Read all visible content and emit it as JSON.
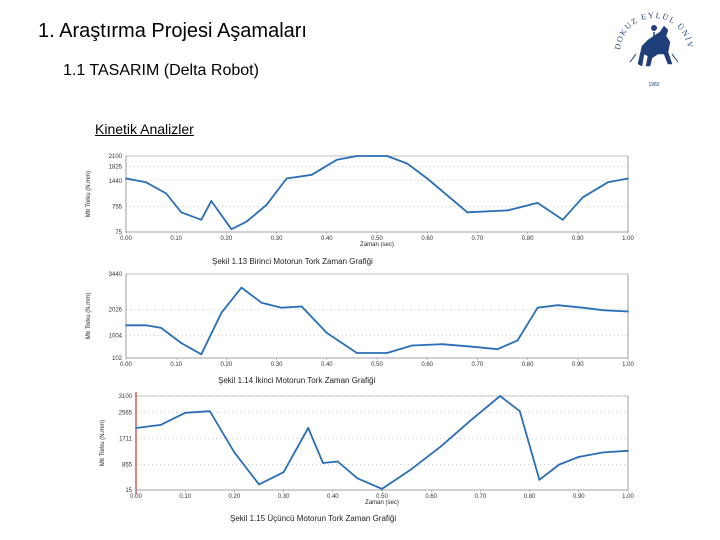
{
  "slide": {
    "title": "1. Araştırma Projesi  Aşamaları",
    "subtitle": "1.1 TASARIM (Delta Robot)",
    "section": "Kinetik Analizler"
  },
  "logo": {
    "text_top": "DOKUZ EYLÜL ÜNİVERSİTESİ",
    "year": "1982",
    "icon": "university-seal-horse-icon"
  },
  "colors": {
    "line": "#2a6fb5",
    "grid": "#999999",
    "axis": "#888888",
    "marker": "#c0392b"
  },
  "chart_data": [
    {
      "type": "line",
      "caption": "Şekil 1.13  Birinci Motorun Tork Zaman Grafiği",
      "xlabel": "Zaman (sec)",
      "ylabel": "Mtr Torku (N.mm)",
      "xlim": [
        0,
        1
      ],
      "ylim": [
        75,
        2100
      ],
      "xticks": [
        "0.00",
        "0.10",
        "0.20",
        "0.30",
        "0.40",
        "0.50",
        "0.60",
        "0.70",
        "0.80",
        "0.90",
        "1.00"
      ],
      "yticks": [
        75,
        755,
        1440,
        1825,
        2100
      ],
      "ytick_labels": [
        "75",
        "755",
        "1440",
        "1825",
        "2100"
      ],
      "x": [
        0,
        0.04,
        0.08,
        0.11,
        0.15,
        0.17,
        0.21,
        0.24,
        0.28,
        0.32,
        0.37,
        0.42,
        0.46,
        0.52,
        0.56,
        0.6,
        0.68,
        0.76,
        0.82,
        0.87,
        0.91,
        0.96,
        1.0
      ],
      "y": [
        1500,
        1400,
        1100,
        600,
        400,
        900,
        150,
        350,
        800,
        1500,
        1600,
        2000,
        2100,
        2100,
        1900,
        1500,
        600,
        650,
        850,
        400,
        1000,
        1400,
        1500
      ]
    },
    {
      "type": "line",
      "caption": "Şekil 1.14 İkinci Motorun Tork Zaman Grafiği",
      "xlabel": "",
      "ylabel": "Mtr Torku (N.mm)",
      "xlim": [
        0,
        1
      ],
      "ylim": [
        102,
        3440
      ],
      "xticks": [
        "0.00",
        "0.10",
        "0.20",
        "0.30",
        "0.40",
        "0.50",
        "0.60",
        "0.70",
        "0.80",
        "0.90",
        "1.00"
      ],
      "yticks": [
        102,
        1004,
        2026,
        3440
      ],
      "ytick_labels": [
        "102",
        "1004",
        "2026",
        "3440"
      ],
      "x": [
        0,
        0.04,
        0.07,
        0.11,
        0.15,
        0.19,
        0.23,
        0.27,
        0.31,
        0.35,
        0.4,
        0.46,
        0.52,
        0.57,
        0.63,
        0.69,
        0.74,
        0.78,
        0.82,
        0.86,
        0.91,
        0.95,
        1.0
      ],
      "y": [
        1400,
        1400,
        1300,
        700,
        250,
        1900,
        2900,
        2300,
        2100,
        2150,
        1100,
        300,
        300,
        600,
        650,
        550,
        450,
        800,
        2100,
        2200,
        2100,
        2000,
        1950
      ]
    },
    {
      "type": "line",
      "caption": "Şekil 1.15 Üçüncü Motorun Tork Zaman Grafiği",
      "xlabel": "Zaman (sec)",
      "ylabel": "Mtr Torku (N.mm)",
      "xlim": [
        0,
        1
      ],
      "ylim": [
        15,
        3100
      ],
      "xticks": [
        "0.00",
        "0.10",
        "0.20",
        "0.30",
        "0.40",
        "0.50",
        "0.60",
        "0.70",
        "0.80",
        "0.90",
        "1.00"
      ],
      "yticks": [
        15,
        855,
        1711,
        2565,
        3100
      ],
      "ytick_labels": [
        "15",
        "855",
        "1711",
        "2565",
        "3100"
      ],
      "x": [
        0,
        0.05,
        0.1,
        0.15,
        0.2,
        0.25,
        0.3,
        0.35,
        0.38,
        0.41,
        0.45,
        0.5,
        0.56,
        0.62,
        0.68,
        0.74,
        0.78,
        0.82,
        0.86,
        0.9,
        0.95,
        1.0
      ],
      "y": [
        2050,
        2150,
        2550,
        2600,
        1250,
        200,
        600,
        2050,
        900,
        950,
        400,
        50,
        700,
        1450,
        2300,
        3100,
        2600,
        350,
        850,
        1100,
        1250,
        1300
      ]
    }
  ]
}
